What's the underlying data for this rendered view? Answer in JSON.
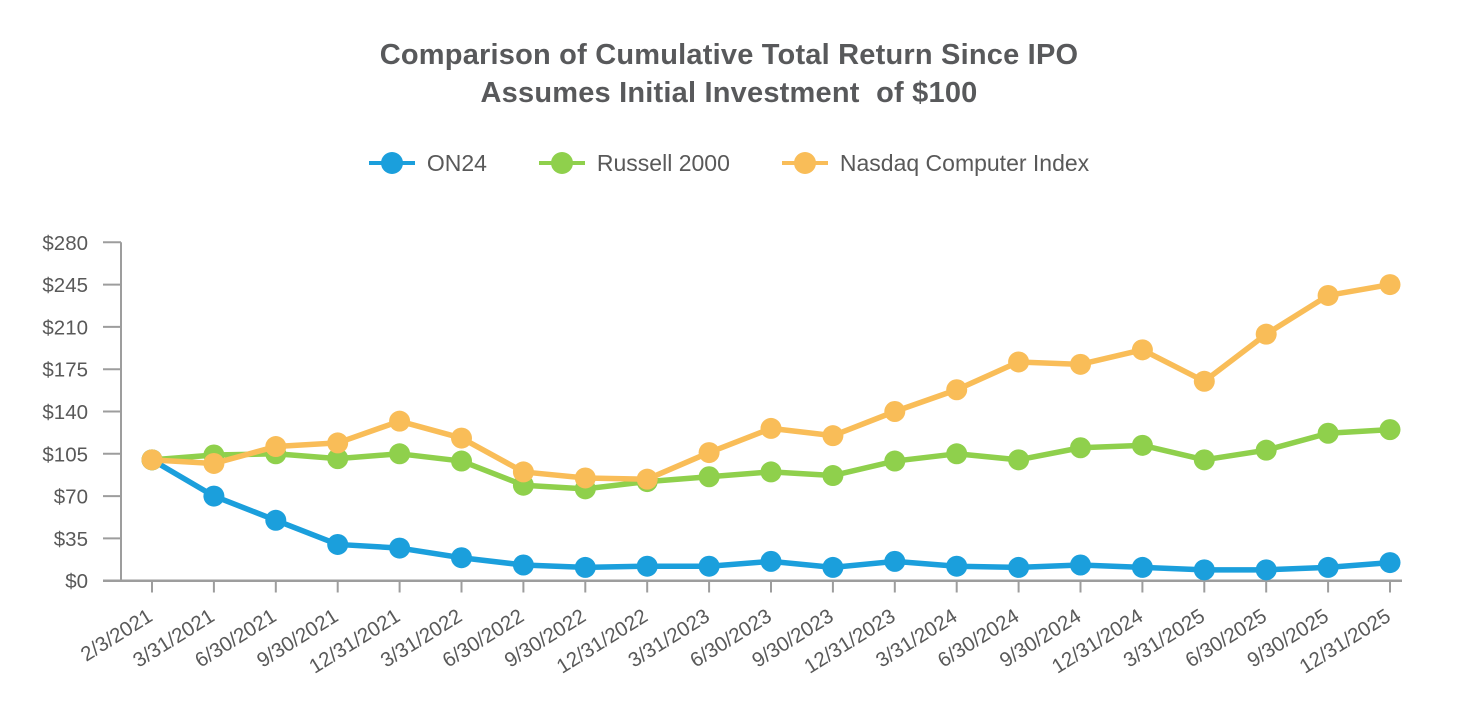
{
  "page": {
    "background_color": "#ffffff",
    "title_color": "#58595B",
    "label_color": "#595959",
    "axis_color": "#9D9D9D"
  },
  "chart_data": {
    "type": "line",
    "title": "Comparison of Cumulative Total Return Since IPO",
    "subtitle": "Assumes Initial Investment  of $100",
    "legend_position": "top",
    "grid": false,
    "marker": "circle",
    "xlabel": "",
    "ylabel": "",
    "ylim": [
      0,
      280
    ],
    "y_ticks": [
      0,
      35,
      70,
      105,
      140,
      175,
      210,
      245,
      280
    ],
    "y_tick_labels": [
      "$0",
      "$35",
      "$70",
      "$105",
      "$140",
      "$175",
      "$210",
      "$245",
      "$280"
    ],
    "categories": [
      "2/3/2021",
      "3/31/2021",
      "6/30/2021",
      "9/30/2021",
      "12/31/2021",
      "3/31/2022",
      "6/30/2022",
      "9/30/2022",
      "12/31/2022",
      "3/31/2023",
      "6/30/2023",
      "9/30/2023",
      "12/31/2023",
      "3/31/2024",
      "6/30/2024",
      "9/30/2024",
      "12/31/2024",
      "3/31/2025",
      "6/30/2025",
      "9/30/2025",
      "12/31/2025"
    ],
    "series": [
      {
        "name": "ON24",
        "color": "#1B9FDC",
        "values": [
          100,
          70,
          50,
          30,
          27,
          19,
          13,
          11,
          12,
          12,
          16,
          11,
          16,
          12,
          11,
          13,
          11,
          9,
          9,
          11,
          15
        ]
      },
      {
        "name": "Russell 2000",
        "color": "#8FD04C",
        "values": [
          100,
          104,
          105,
          101,
          105,
          99,
          79,
          76,
          82,
          86,
          90,
          87,
          99,
          105,
          100,
          110,
          112,
          100,
          108,
          122,
          125
        ]
      },
      {
        "name": "Nasdaq Computer Index",
        "color": "#F9BD58",
        "values": [
          100,
          97,
          111,
          114,
          132,
          118,
          90,
          85,
          84,
          106,
          126,
          120,
          140,
          158,
          181,
          179,
          191,
          165,
          204,
          236,
          245
        ]
      }
    ]
  }
}
